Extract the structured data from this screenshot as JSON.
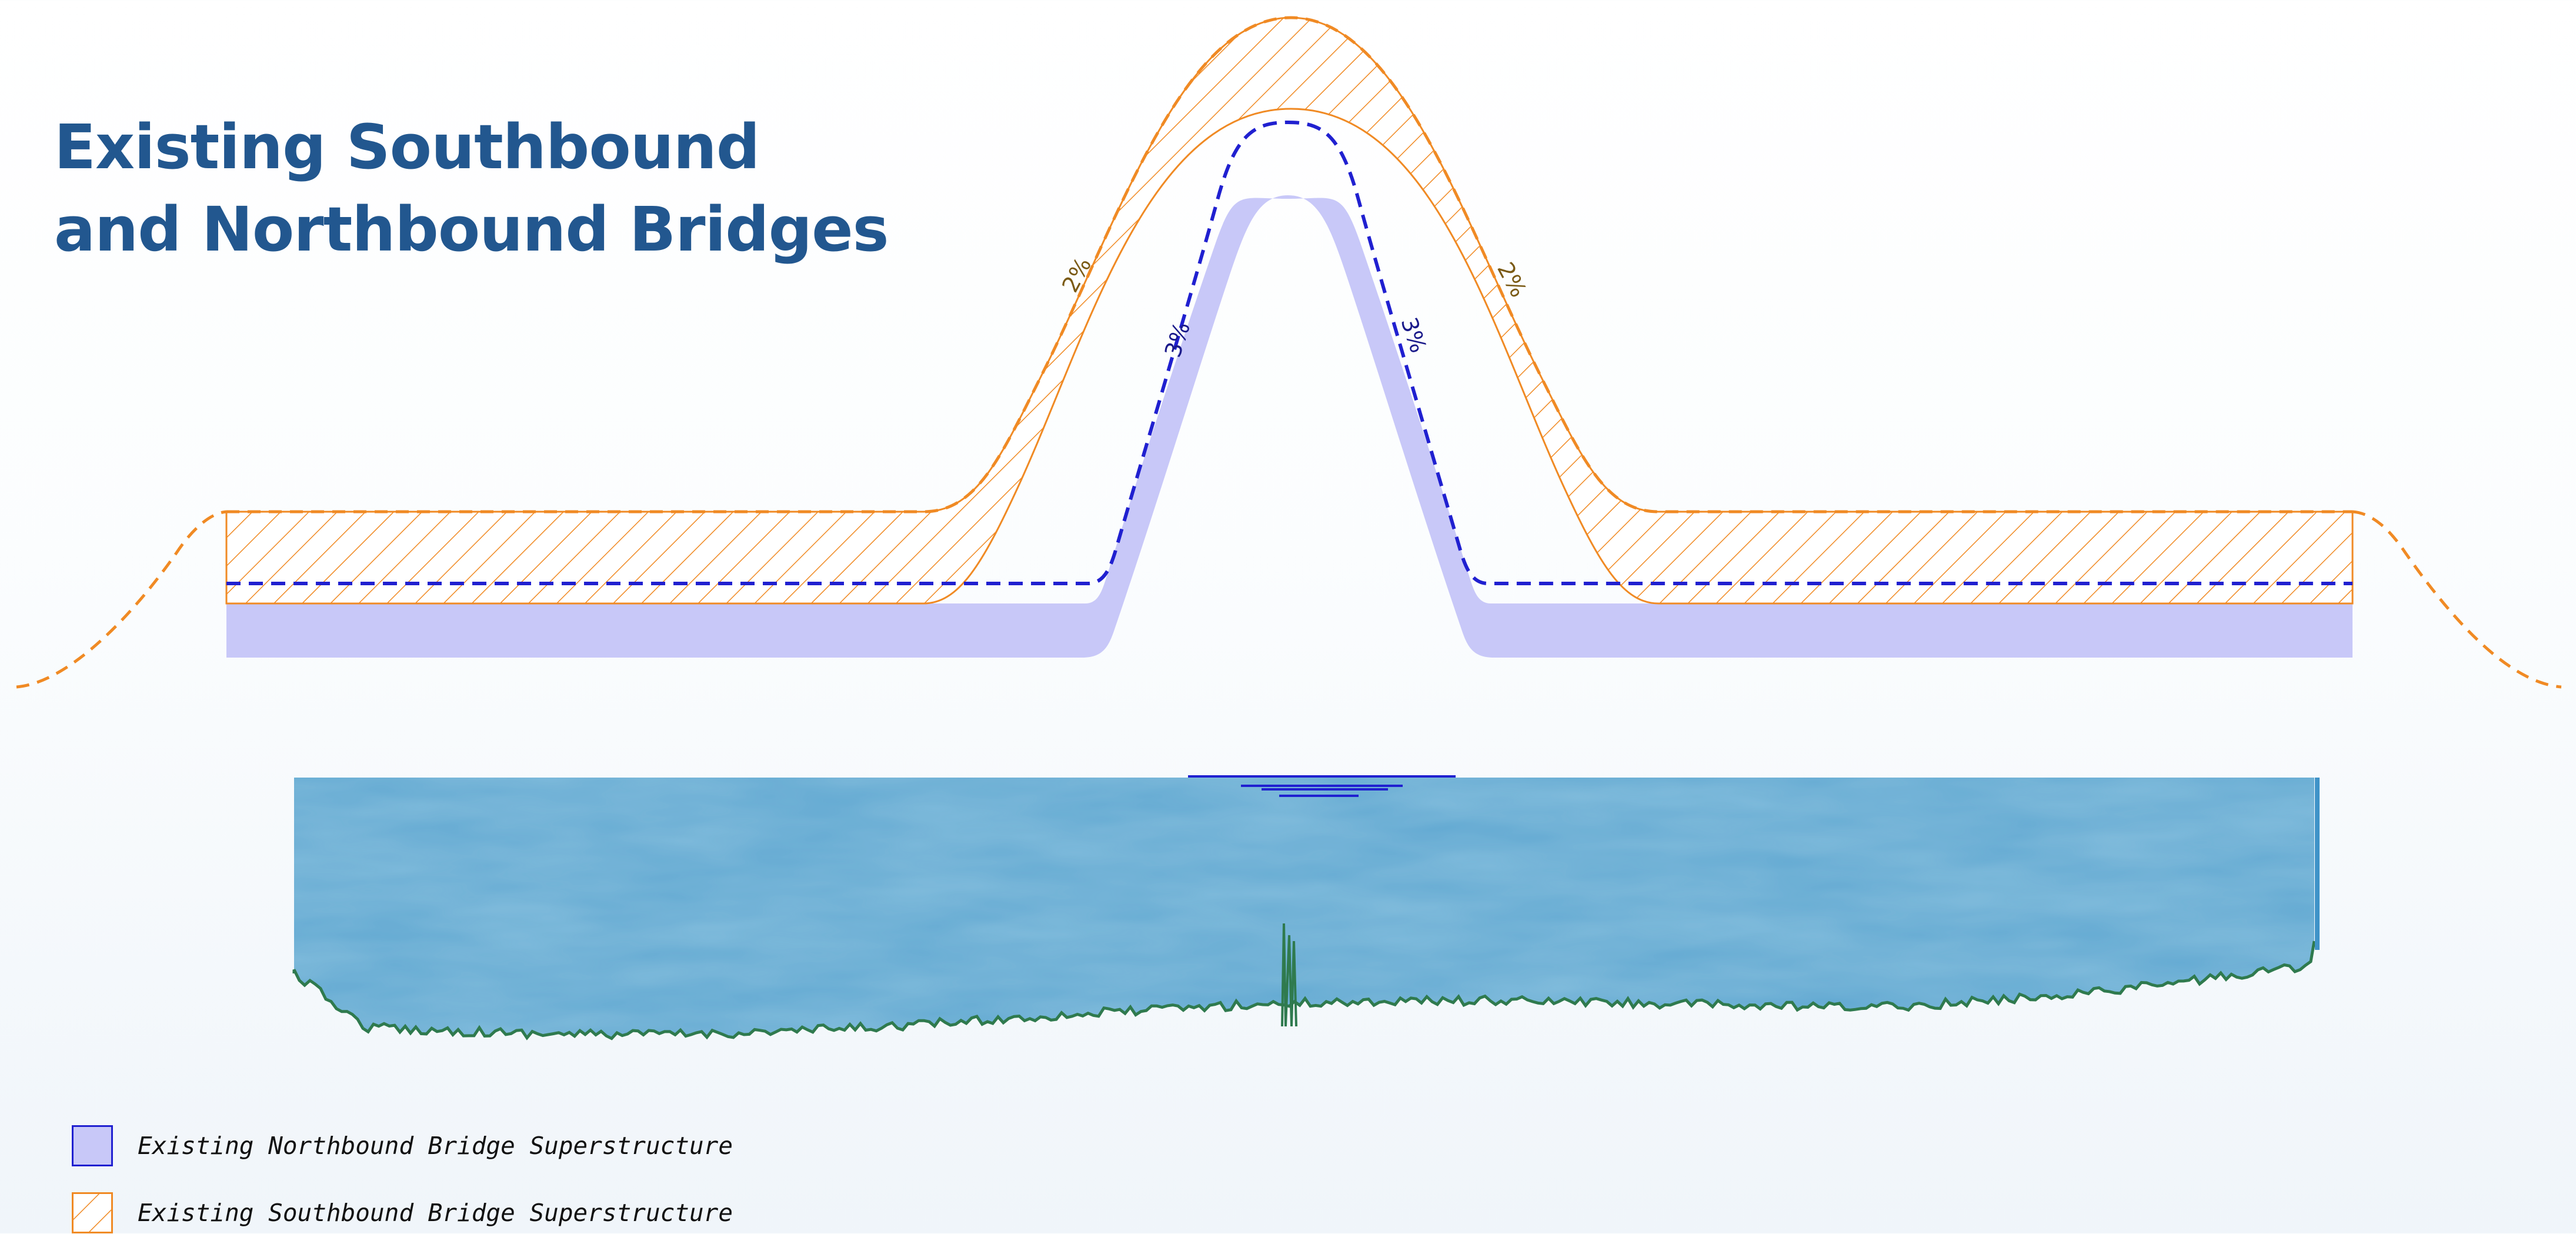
{
  "title": {
    "line1": "Existing Southbound",
    "line2": "and Northbound Bridges"
  },
  "slope_labels": {
    "southbound_left": "2%",
    "southbound_right": "2%",
    "northbound_left": "3%",
    "northbound_right": "3%"
  },
  "legend": {
    "northbound": "Existing Northbound Bridge Superstructure",
    "southbound": "Existing Southbound Bridge Superstructure"
  },
  "colors": {
    "title": "#22578f",
    "northbound_fill": "#c8c8f8",
    "northbound_line": "#2020d0",
    "southbound_line": "#f08a24",
    "water": "#62a9d2",
    "riverbed": "#2f7a4e",
    "slope_label_southbound": "#7a5a14",
    "slope_label_northbound": "#1a1a8a"
  }
}
